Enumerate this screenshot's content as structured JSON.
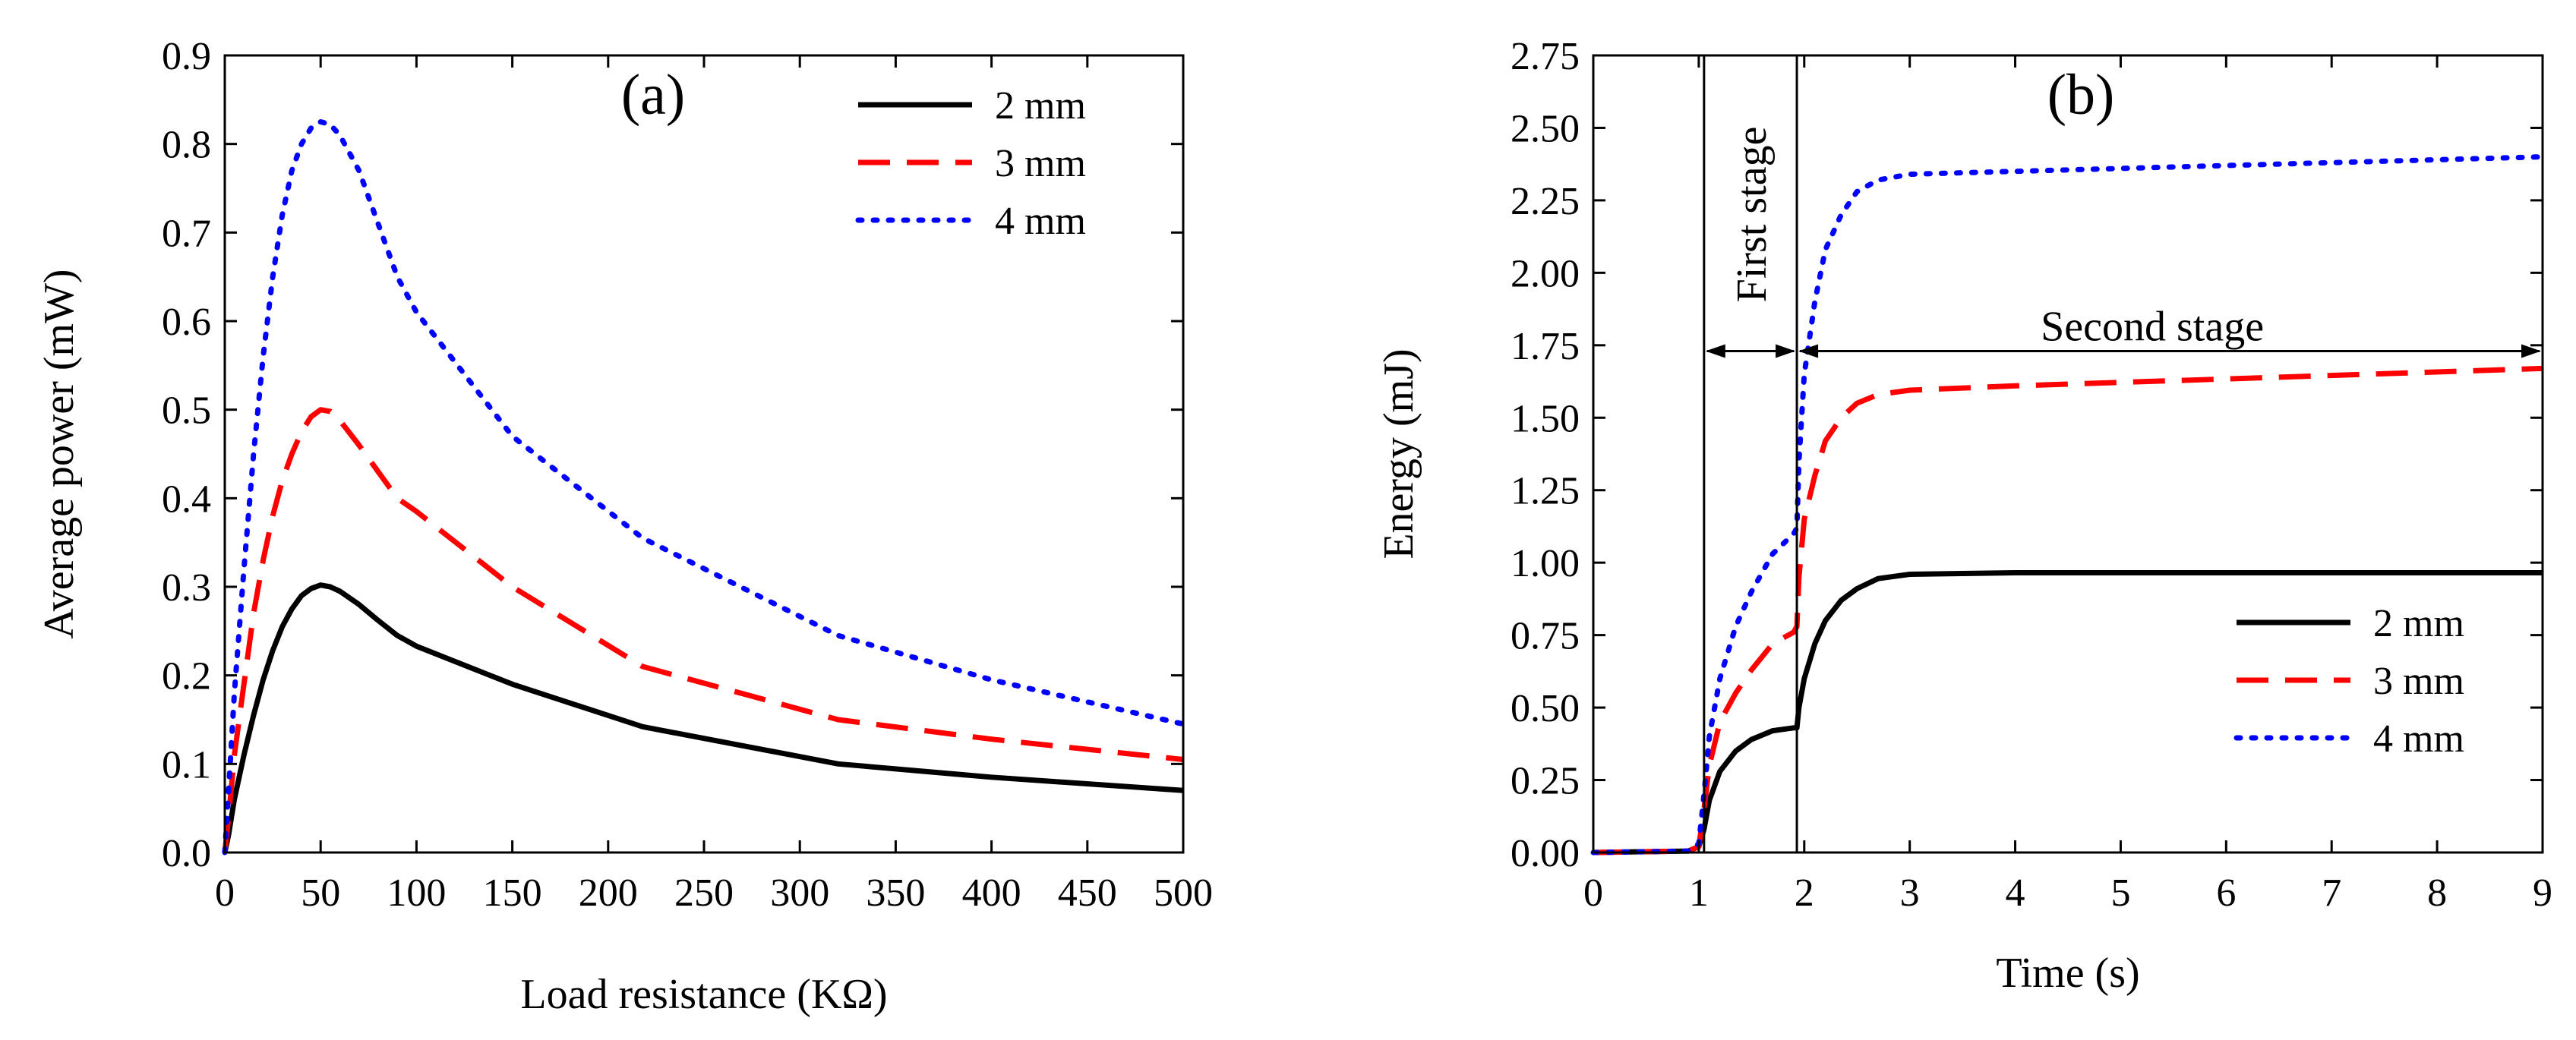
{
  "chart_data": [
    {
      "type": "line",
      "panel_label": "(a)",
      "xlabel": "Load resistance (KΩ)",
      "ylabel": "Average power (mW)",
      "xlim": [
        0,
        500
      ],
      "ylim": [
        0,
        0.9
      ],
      "xticks": [
        0,
        50,
        100,
        150,
        200,
        250,
        300,
        350,
        400,
        450,
        500
      ],
      "yticks": [
        0.0,
        0.1,
        0.2,
        0.3,
        0.4,
        0.5,
        0.6,
        0.7,
        0.8,
        0.9
      ],
      "xtick_labels": [
        "0",
        "50",
        "100",
        "150",
        "200",
        "250",
        "300",
        "350",
        "400",
        "450",
        "500"
      ],
      "ytick_labels": [
        "0.0",
        "0.1",
        "0.2",
        "0.3",
        "0.4",
        "0.5",
        "0.6",
        "0.7",
        "0.8",
        "0.9"
      ],
      "legend_position": "top-right",
      "series": [
        {
          "name": "2 mm",
          "color": "#000000",
          "style": "solid",
          "x": [
            0,
            2,
            5,
            10,
            15,
            20,
            25,
            30,
            35,
            40,
            45,
            50,
            55,
            60,
            70,
            80,
            90,
            100,
            150,
            218,
            320,
            400,
            500
          ],
          "y": [
            0.0,
            0.02,
            0.06,
            0.11,
            0.155,
            0.195,
            0.228,
            0.255,
            0.275,
            0.29,
            0.298,
            0.302,
            0.3,
            0.295,
            0.28,
            0.262,
            0.245,
            0.233,
            0.19,
            0.142,
            0.1,
            0.085,
            0.07
          ]
        },
        {
          "name": "3 mm",
          "color": "#ff0000",
          "style": "dashed",
          "x": [
            0,
            2,
            5,
            10,
            15,
            20,
            25,
            30,
            35,
            40,
            45,
            50,
            55,
            60,
            70,
            80,
            90,
            100,
            150,
            218,
            320,
            400,
            500
          ],
          "y": [
            0.0,
            0.04,
            0.11,
            0.19,
            0.27,
            0.33,
            0.38,
            0.42,
            0.45,
            0.475,
            0.492,
            0.5,
            0.498,
            0.488,
            0.46,
            0.43,
            0.4,
            0.385,
            0.3,
            0.21,
            0.15,
            0.128,
            0.105
          ]
        },
        {
          "name": "4 mm",
          "color": "#0000ff",
          "style": "dotted",
          "x": [
            0,
            2,
            5,
            10,
            15,
            20,
            25,
            30,
            35,
            40,
            45,
            50,
            55,
            60,
            70,
            80,
            90,
            100,
            150,
            218,
            320,
            400,
            500
          ],
          "y": [
            0.0,
            0.07,
            0.18,
            0.32,
            0.45,
            0.56,
            0.65,
            0.72,
            0.77,
            0.8,
            0.818,
            0.825,
            0.822,
            0.81,
            0.77,
            0.71,
            0.65,
            0.61,
            0.47,
            0.355,
            0.245,
            0.195,
            0.145
          ]
        }
      ]
    },
    {
      "type": "line",
      "panel_label": "(b)",
      "xlabel": "Time (s)",
      "ylabel": "Energy (mJ)",
      "xlim": [
        0,
        9
      ],
      "ylim": [
        0,
        2.75
      ],
      "xticks": [
        0,
        1,
        2,
        3,
        4,
        5,
        6,
        7,
        8,
        9
      ],
      "yticks": [
        0.0,
        0.25,
        0.5,
        0.75,
        1.0,
        1.25,
        1.5,
        1.75,
        2.0,
        2.25,
        2.5,
        2.75
      ],
      "xtick_labels": [
        "0",
        "1",
        "2",
        "3",
        "4",
        "5",
        "6",
        "7",
        "8",
        "9"
      ],
      "ytick_labels": [
        "0.00",
        "0.25",
        "0.50",
        "0.75",
        "1.00",
        "1.25",
        "1.50",
        "1.75",
        "2.00",
        "2.25",
        "2.50",
        "2.75"
      ],
      "legend_position": "bottom-right",
      "stage_boundaries": [
        1.05,
        1.93
      ],
      "arrow_y": 1.73,
      "annotations": {
        "first_stage": "First stage",
        "second_stage": "Second stage"
      },
      "series": [
        {
          "name": "2 mm",
          "color": "#000000",
          "style": "solid",
          "x": [
            0,
            0.9,
            1.0,
            1.05,
            1.1,
            1.2,
            1.35,
            1.5,
            1.7,
            1.9,
            1.93,
            1.95,
            2.0,
            2.1,
            2.2,
            2.35,
            2.5,
            2.7,
            3.0,
            4.0,
            9.0
          ],
          "y": [
            0,
            0.005,
            0.02,
            0.08,
            0.18,
            0.28,
            0.35,
            0.39,
            0.42,
            0.43,
            0.43,
            0.5,
            0.6,
            0.72,
            0.8,
            0.87,
            0.91,
            0.945,
            0.96,
            0.965,
            0.965
          ]
        },
        {
          "name": "3 mm",
          "color": "#ff0000",
          "style": "dashed",
          "x": [
            0,
            0.9,
            1.0,
            1.05,
            1.1,
            1.2,
            1.35,
            1.5,
            1.7,
            1.9,
            1.93,
            1.95,
            2.0,
            2.1,
            2.2,
            2.35,
            2.5,
            2.7,
            3.0,
            4.0,
            9.0
          ],
          "y": [
            0,
            0.005,
            0.02,
            0.15,
            0.3,
            0.45,
            0.55,
            0.63,
            0.72,
            0.76,
            0.78,
            0.95,
            1.15,
            1.3,
            1.42,
            1.5,
            1.55,
            1.58,
            1.595,
            1.61,
            1.67
          ]
        },
        {
          "name": "4 mm",
          "color": "#0000ff",
          "style": "dotted",
          "x": [
            0,
            0.9,
            1.0,
            1.05,
            1.1,
            1.2,
            1.35,
            1.5,
            1.7,
            1.9,
            1.93,
            1.95,
            2.0,
            2.1,
            2.2,
            2.35,
            2.5,
            2.7,
            3.0,
            4.0,
            9.0
          ],
          "y": [
            0,
            0.005,
            0.03,
            0.2,
            0.4,
            0.6,
            0.78,
            0.9,
            1.03,
            1.1,
            1.12,
            1.35,
            1.65,
            1.9,
            2.08,
            2.2,
            2.28,
            2.32,
            2.34,
            2.35,
            2.4
          ]
        }
      ]
    }
  ]
}
